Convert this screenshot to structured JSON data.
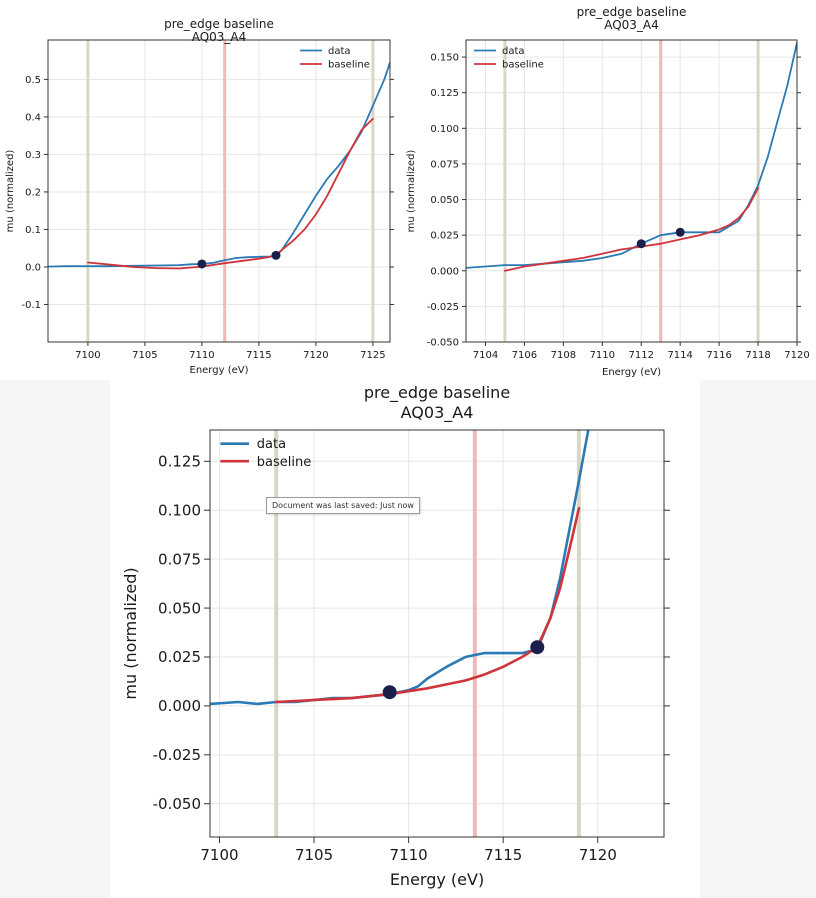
{
  "colors": {
    "data": "#2a7ab5",
    "baseline": "#d0343b",
    "point": "#1b1f4b",
    "edge_line": "#f2b8b8",
    "range_line": "#d9d7c4"
  },
  "tooltip": {
    "text": "Document was last saved: Just now"
  },
  "chart_data": [
    {
      "type": "line",
      "title": "pre_edge baseline",
      "subtitle": "AQ03_A4",
      "xlabel": "Energy (eV)",
      "ylabel": "mu (normalized)",
      "xlim": [
        7096.5,
        7126.5
      ],
      "ylim": [
        -0.2,
        0.605
      ],
      "xticks": [
        7100,
        7105,
        7110,
        7115,
        7120,
        7125
      ],
      "yticks": [
        -0.1,
        0.0,
        0.1,
        0.2,
        0.3,
        0.4,
        0.5
      ],
      "ytick_labels": [
        "-0.1",
        "0.0",
        "0.1",
        "0.2",
        "0.3",
        "0.4",
        "0.5"
      ],
      "legend": {
        "position": "top-right",
        "entries": [
          "data",
          "baseline"
        ]
      },
      "vlines": {
        "range": [
          7100,
          7125
        ],
        "edge": 7112
      },
      "series": [
        {
          "name": "data",
          "x": [
            7096.5,
            7098,
            7100,
            7102,
            7104,
            7106,
            7108,
            7109,
            7110,
            7111,
            7112,
            7113,
            7114,
            7115,
            7116,
            7116.5,
            7117,
            7118,
            7119,
            7120,
            7121,
            7122,
            7123,
            7124,
            7125,
            7126,
            7126.5
          ],
          "y": [
            0.001,
            0.002,
            0.002,
            0.002,
            0.003,
            0.004,
            0.005,
            0.007,
            0.008,
            0.011,
            0.018,
            0.024,
            0.026,
            0.027,
            0.028,
            0.03,
            0.045,
            0.09,
            0.14,
            0.19,
            0.235,
            0.27,
            0.31,
            0.36,
            0.43,
            0.5,
            0.545
          ]
        },
        {
          "name": "baseline",
          "x": [
            7100,
            7102,
            7104,
            7106,
            7108,
            7110,
            7112,
            7114,
            7115,
            7116,
            7116.5,
            7117,
            7118,
            7119,
            7120,
            7121,
            7122,
            7123,
            7124,
            7125
          ],
          "y": [
            0.012,
            0.006,
            0.0,
            -0.003,
            -0.004,
            0.001,
            0.01,
            0.018,
            0.022,
            0.027,
            0.031,
            0.045,
            0.07,
            0.1,
            0.14,
            0.19,
            0.25,
            0.31,
            0.365,
            0.395
          ]
        }
      ],
      "points": {
        "x": [
          7110,
          7116.5
        ],
        "y": [
          0.008,
          0.031
        ]
      }
    },
    {
      "type": "line",
      "title": "pre_edge baseline",
      "subtitle": "AQ03_A4",
      "xlabel": "Energy (eV)",
      "ylabel": "mu (normalized)",
      "xlim": [
        7103,
        7120
      ],
      "ylim": [
        -0.05,
        0.162
      ],
      "xticks": [
        7104,
        7106,
        7108,
        7110,
        7112,
        7114,
        7116,
        7118,
        7120
      ],
      "yticks": [
        -0.05,
        -0.025,
        0.0,
        0.025,
        0.05,
        0.075,
        0.1,
        0.125,
        0.15
      ],
      "ytick_labels": [
        "-0.050",
        "-0.025",
        "0.000",
        "0.025",
        "0.050",
        "0.075",
        "0.100",
        "0.125",
        "0.150"
      ],
      "legend": {
        "position": "top-left",
        "entries": [
          "data",
          "baseline"
        ]
      },
      "vlines": {
        "range": [
          7105,
          7118
        ],
        "edge": 7113
      },
      "series": [
        {
          "name": "data",
          "x": [
            7103,
            7104,
            7105,
            7106,
            7107,
            7108,
            7109,
            7110,
            7111,
            7112,
            7113,
            7114,
            7115,
            7116,
            7117,
            7117.5,
            7118,
            7118.5,
            7119,
            7119.5,
            7120
          ],
          "y": [
            0.002,
            0.003,
            0.004,
            0.004,
            0.005,
            0.006,
            0.007,
            0.009,
            0.012,
            0.019,
            0.025,
            0.027,
            0.027,
            0.027,
            0.035,
            0.046,
            0.06,
            0.08,
            0.105,
            0.13,
            0.16
          ]
        },
        {
          "name": "baseline",
          "x": [
            7105,
            7106,
            7107,
            7108,
            7109,
            7110,
            7111,
            7112,
            7113,
            7114,
            7115,
            7116,
            7116.5,
            7117,
            7117.5,
            7118
          ],
          "y": [
            0.0,
            0.003,
            0.005,
            0.007,
            0.009,
            0.012,
            0.015,
            0.017,
            0.019,
            0.022,
            0.025,
            0.029,
            0.032,
            0.037,
            0.045,
            0.058
          ]
        }
      ],
      "points": {
        "x": [
          7112,
          7114
        ],
        "y": [
          0.019,
          0.027
        ]
      }
    },
    {
      "type": "line",
      "title": "pre_edge baseline",
      "subtitle": "AQ03_A4",
      "xlabel": "Energy (eV)",
      "ylabel": "mu (normalized)",
      "xlim": [
        7099.5,
        7123.5
      ],
      "ylim": [
        -0.067,
        0.141
      ],
      "xticks": [
        7100,
        7105,
        7110,
        7115,
        7120
      ],
      "yticks": [
        -0.05,
        -0.025,
        0.0,
        0.025,
        0.05,
        0.075,
        0.1,
        0.125
      ],
      "ytick_labels": [
        "-0.050",
        "-0.025",
        "0.000",
        "0.025",
        "0.050",
        "0.075",
        "0.100",
        "0.125"
      ],
      "legend": {
        "position": "top-left",
        "entries": [
          "data",
          "baseline"
        ]
      },
      "vlines": {
        "range": [
          7103,
          7119
        ],
        "edge": 7113.5
      },
      "series": [
        {
          "name": "data",
          "x": [
            7099.5,
            7101,
            7102,
            7103,
            7104,
            7105,
            7106,
            7107,
            7108,
            7109,
            7110,
            7110.5,
            7111,
            7112,
            7113,
            7113.5,
            7114,
            7115,
            7116,
            7116.8,
            7117.5,
            7118,
            7118.5,
            7119,
            7119.5
          ],
          "y": [
            0.001,
            0.002,
            0.001,
            0.002,
            0.002,
            0.003,
            0.004,
            0.004,
            0.005,
            0.006,
            0.008,
            0.01,
            0.014,
            0.02,
            0.025,
            0.026,
            0.027,
            0.027,
            0.027,
            0.029,
            0.045,
            0.065,
            0.09,
            0.115,
            0.141
          ]
        },
        {
          "name": "baseline",
          "x": [
            7103,
            7104,
            7105,
            7106,
            7107,
            7108,
            7109,
            7110,
            7111,
            7112,
            7113,
            7114,
            7115,
            7116,
            7116.8,
            7117.5,
            7118,
            7118.5,
            7119
          ],
          "y": [
            0.002,
            0.0025,
            0.003,
            0.0035,
            0.004,
            0.005,
            0.006,
            0.0075,
            0.009,
            0.011,
            0.013,
            0.016,
            0.02,
            0.025,
            0.03,
            0.045,
            0.06,
            0.08,
            0.101
          ]
        }
      ],
      "points": {
        "x": [
          7109,
          7116.8
        ],
        "y": [
          0.007,
          0.03
        ]
      }
    }
  ]
}
